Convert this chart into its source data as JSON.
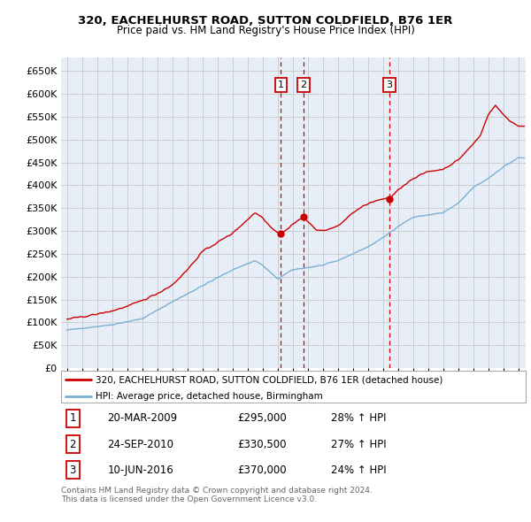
{
  "title": "320, EACHELHURST ROAD, SUTTON COLDFIELD, B76 1ER",
  "subtitle": "Price paid vs. HM Land Registry's House Price Index (HPI)",
  "legend_line1": "320, EACHELHURST ROAD, SUTTON COLDFIELD, B76 1ER (detached house)",
  "legend_line2": "HPI: Average price, detached house, Birmingham",
  "footer": "Contains HM Land Registry data © Crown copyright and database right 2024.\nThis data is licensed under the Open Government Licence v3.0.",
  "transactions": [
    {
      "num": 1,
      "date": "20-MAR-2009",
      "price": "£295,000",
      "hpi": "28% ↑ HPI",
      "year": 2009.22,
      "price_val": 295000
    },
    {
      "num": 2,
      "date": "24-SEP-2010",
      "price": "£330,500",
      "hpi": "27% ↑ HPI",
      "year": 2010.73,
      "price_val": 330500
    },
    {
      "num": 3,
      "date": "10-JUN-2016",
      "price": "£370,000",
      "hpi": "24% ↑ HPI",
      "year": 2016.44,
      "price_val": 370000
    }
  ],
  "price_color": "#cc0000",
  "hpi_color": "#7ab0d4",
  "vline_color": "#cc0000",
  "dot_color": "#cc0000",
  "ylim": [
    0,
    680000
  ],
  "yticks": [
    0,
    50000,
    100000,
    150000,
    200000,
    250000,
    300000,
    350000,
    400000,
    450000,
    500000,
    550000,
    600000,
    650000
  ],
  "xlim_left": 1994.6,
  "xlim_right": 2025.5,
  "background_color": "#ffffff",
  "grid_color": "#cccccc",
  "plot_bg": "#e8eef8"
}
